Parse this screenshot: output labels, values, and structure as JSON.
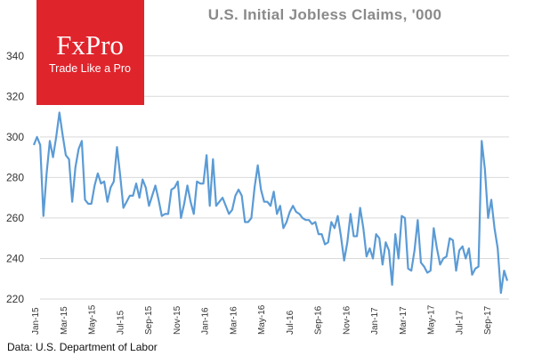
{
  "chart_data": {
    "type": "line",
    "title": "U.S. Initial Jobless Claims, '000",
    "ylim": [
      220,
      350
    ],
    "yticks": [
      220,
      240,
      260,
      280,
      300,
      320,
      340
    ],
    "grid": true,
    "line_color": "#5b9bd5",
    "x_tick_labels": [
      "Jan-15",
      "Mar-15",
      "May-15",
      "Jul-15",
      "Sep-15",
      "Nov-15",
      "Jan-16",
      "Mar-16",
      "May-16",
      "Jul-16",
      "Sep-16",
      "Nov-16",
      "Jan-17",
      "Mar-17",
      "May-17",
      "Jul-17",
      "Sep-17"
    ],
    "series": [
      {
        "values": [
          296,
          300,
          296,
          261,
          282,
          298,
          290,
          300,
          312,
          301,
          291,
          289,
          268,
          285,
          294,
          298,
          269,
          267,
          267,
          276,
          282,
          277,
          278,
          268,
          275,
          278,
          295,
          281,
          265,
          268,
          271,
          271,
          277,
          270,
          279,
          275,
          266,
          271,
          276,
          269,
          261,
          262,
          262,
          274,
          275,
          278,
          260,
          267,
          276,
          268,
          262,
          278,
          277,
          277,
          291,
          266,
          289,
          266,
          268,
          270,
          266,
          262,
          264,
          271,
          274,
          271,
          258,
          258,
          260,
          275,
          286,
          274,
          268,
          268,
          266,
          273,
          262,
          266,
          255,
          258,
          263,
          266,
          263,
          262,
          260,
          259,
          259,
          257,
          258,
          252,
          252,
          247,
          248,
          258,
          255,
          261,
          251,
          239,
          248,
          262,
          251,
          251,
          265,
          255,
          241,
          245,
          240,
          252,
          250,
          237,
          248,
          244,
          227,
          252,
          240,
          261,
          260,
          235,
          234,
          244,
          259,
          238,
          236,
          233,
          234,
          255,
          245,
          237,
          240,
          241,
          250,
          249,
          234,
          244,
          246,
          240,
          245,
          232,
          235,
          236,
          298,
          284,
          260,
          269,
          255,
          245,
          223,
          234,
          229
        ]
      }
    ]
  },
  "source_text": "Data: U.S. Department of Labor",
  "logo": {
    "name": "FxPro",
    "tagline": "Trade Like a Pro",
    "color": "#e0242c"
  }
}
